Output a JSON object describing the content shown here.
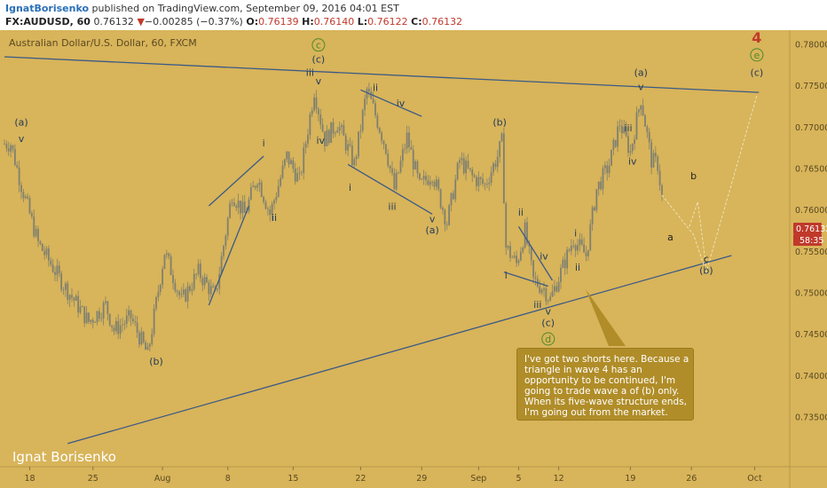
{
  "header": {
    "author": "IgnatBorisenko",
    "published": " published on TradingView.com, September 09, 2016 04:01 EST",
    "symbol": "FX:AUDUSD, 60",
    "last": "0.76132",
    "arrow": "▼",
    "change": "−0.00285 (−0.37%)",
    "open_label": "O:",
    "open": "0.76139",
    "high_label": "H:",
    "high": "0.76140",
    "low_label": "L:",
    "low": "0.76122",
    "close_label": "C:",
    "close": "0.76132"
  },
  "watermark": "Ignat Borisenko",
  "note": "I've got two shorts here. Because a triangle in wave 4 has an opportunity to be continued, I'm going to trade wave a of (b) only. When its five-wave structure ends, I'm going out from the market.",
  "colors": {
    "background": "#d8b45a",
    "trendline": "#3a5a86",
    "candle": "#7f8070",
    "wave_label": "#1f3a5a",
    "wave_green": "#4e8a2a",
    "wave_red": "#c0392b",
    "price_tag": "#c0392b"
  },
  "chart_data": {
    "type": "candlestick",
    "title": "Australian Dollar/U.S. Dollar, 60, FXCM",
    "ylim": [
      0.734,
      0.7815
    ],
    "y_ticks": [
      "0.78000",
      "0.77500",
      "0.77000",
      "0.76500",
      "0.76000",
      "0.75500",
      "0.75000",
      "0.74500",
      "0.74000",
      "0.73500"
    ],
    "x_ticks": [
      "18",
      "25",
      "Aug",
      "8",
      "15",
      "22",
      "29",
      "Sep",
      "5",
      "12",
      "19",
      "26",
      "Oct"
    ],
    "last_price": "0.76132",
    "countdown": "58:35",
    "price_path": [
      [
        0.763,
        0.7675
      ],
      [
        3,
        0.768
      ],
      [
        8,
        0.763
      ],
      [
        16,
        0.756
      ],
      [
        28,
        0.751
      ],
      [
        40,
        0.7465
      ],
      [
        48,
        0.7485
      ],
      [
        52,
        0.7455
      ],
      [
        60,
        0.747
      ],
      [
        68,
        0.7425
      ],
      [
        76,
        0.755
      ],
      [
        84,
        0.749
      ],
      [
        92,
        0.7525
      ],
      [
        100,
        0.7495
      ],
      [
        108,
        0.762
      ],
      [
        114,
        0.7595
      ],
      [
        120,
        0.764
      ],
      [
        126,
        0.7595
      ],
      [
        134,
        0.7665
      ],
      [
        140,
        0.7635
      ],
      [
        147,
        0.7745
      ],
      [
        152,
        0.7685
      ],
      [
        158,
        0.7705
      ],
      [
        166,
        0.7655
      ],
      [
        172,
        0.7745
      ],
      [
        176,
        0.7715
      ],
      [
        181,
        0.7675
      ],
      [
        185,
        0.7625
      ],
      [
        191,
        0.7688
      ],
      [
        197,
        0.7628
      ],
      [
        203,
        0.7645
      ],
      [
        210,
        0.7585
      ],
      [
        216,
        0.766
      ],
      [
        222,
        0.764
      ],
      [
        228,
        0.763
      ],
      [
        234,
        0.7665
      ],
      [
        236,
        0.7682
      ],
      [
        238,
        0.7555
      ],
      [
        243,
        0.7535
      ],
      [
        247,
        0.7575
      ],
      [
        251,
        0.7515
      ],
      [
        256,
        0.7505
      ],
      [
        259,
        0.7492
      ],
      [
        264,
        0.7525
      ],
      [
        270,
        0.7565
      ],
      [
        276,
        0.7545
      ],
      [
        281,
        0.7625
      ],
      [
        287,
        0.7655
      ],
      [
        292,
        0.7705
      ],
      [
        297,
        0.767
      ],
      [
        302,
        0.7735
      ],
      [
        307,
        0.766
      ],
      [
        310,
        0.7655
      ],
      [
        312,
        0.7615
      ]
    ],
    "trendlines": [
      {
        "from": [
          0,
          0.7785
        ],
        "to": [
          358,
          0.7742
        ]
      },
      {
        "from": [
          30,
          0.7318
        ],
        "to": [
          345,
          0.7545
        ]
      },
      {
        "from": [
          97,
          0.7605
        ],
        "to": [
          123,
          0.7665
        ]
      },
      {
        "from": [
          97,
          0.7485
        ],
        "to": [
          116,
          0.7605
        ]
      },
      {
        "from": [
          169,
          0.7745
        ],
        "to": [
          198,
          0.7713
        ]
      },
      {
        "from": [
          163,
          0.7655
        ],
        "to": [
          203,
          0.7595
        ]
      },
      {
        "from": [
          244,
          0.758
        ],
        "to": [
          260,
          0.7515
        ]
      },
      {
        "from": [
          237,
          0.7525
        ],
        "to": [
          258,
          0.7508
        ]
      }
    ],
    "projection": [
      [
        312,
        0.7618
      ],
      [
        327,
        0.757
      ],
      [
        333,
        0.7525
      ],
      [
        357,
        0.7738
      ]
    ],
    "projection_bc": [
      [
        325,
        0.758
      ],
      [
        329,
        0.761
      ],
      [
        333,
        0.753
      ]
    ],
    "waves": [
      {
        "label": "(a)",
        "x": 8,
        "price": 0.7702,
        "color": "#1f3a5a"
      },
      {
        "label": "v",
        "x": 8,
        "price": 0.7682,
        "color": "#1f3a5a"
      },
      {
        "label": "(b)",
        "x": 72,
        "price": 0.7413,
        "color": "#1f3a5a"
      },
      {
        "label": "i",
        "x": 123,
        "price": 0.7677,
        "color": "#1f3a5a"
      },
      {
        "label": "ii",
        "x": 128,
        "price": 0.7587,
        "color": "#1f3a5a"
      },
      {
        "label": "iii",
        "x": 145,
        "price": 0.7762,
        "color": "#1f3a5a"
      },
      {
        "label": "v",
        "x": 149,
        "price": 0.7752,
        "color": "#1f3a5a"
      },
      {
        "label": "iv",
        "x": 150,
        "price": 0.768,
        "color": "#1f3a5a"
      },
      {
        "label": "(c)",
        "x": 149,
        "price": 0.7778,
        "color": "#1f3a5a"
      },
      {
        "label": "c",
        "x": 149,
        "price": 0.7795,
        "color": "#4e8a2a",
        "circle": true
      },
      {
        "label": "i",
        "x": 164,
        "price": 0.7623,
        "color": "#1f3a5a"
      },
      {
        "label": "ii",
        "x": 176,
        "price": 0.7744,
        "color": "#1f3a5a"
      },
      {
        "label": "iii",
        "x": 184,
        "price": 0.76,
        "color": "#1f3a5a"
      },
      {
        "label": "iv",
        "x": 188,
        "price": 0.7725,
        "color": "#1f3a5a"
      },
      {
        "label": "v",
        "x": 203,
        "price": 0.7585,
        "color": "#1f3a5a"
      },
      {
        "label": "(a)",
        "x": 203,
        "price": 0.7572,
        "color": "#1f3a5a"
      },
      {
        "label": "(b)",
        "x": 235,
        "price": 0.7702,
        "color": "#1f3a5a"
      },
      {
        "label": "ii",
        "x": 245,
        "price": 0.7593,
        "color": "#1f3a5a"
      },
      {
        "label": "i",
        "x": 238,
        "price": 0.7517,
        "color": "#1f3a5a"
      },
      {
        "label": "iv",
        "x": 256,
        "price": 0.754,
        "color": "#1f3a5a"
      },
      {
        "label": "iii",
        "x": 253,
        "price": 0.7482,
        "color": "#1f3a5a"
      },
      {
        "label": "v",
        "x": 258,
        "price": 0.7474,
        "color": "#1f3a5a"
      },
      {
        "label": "(c)",
        "x": 258,
        "price": 0.746,
        "color": "#1f3a5a"
      },
      {
        "label": "d",
        "x": 258,
        "price": 0.744,
        "color": "#4e8a2a",
        "circle": true
      },
      {
        "label": "i",
        "x": 271,
        "price": 0.7568,
        "color": "#1f3a5a"
      },
      {
        "label": "ii",
        "x": 272,
        "price": 0.7527,
        "color": "#1f3a5a"
      },
      {
        "label": "iii",
        "x": 296,
        "price": 0.7695,
        "color": "#1f3a5a"
      },
      {
        "label": "iv",
        "x": 298,
        "price": 0.7655,
        "color": "#1f3a5a"
      },
      {
        "label": "(a)",
        "x": 302,
        "price": 0.7762,
        "color": "#1f3a5a"
      },
      {
        "label": "v",
        "x": 302,
        "price": 0.7745,
        "color": "#1f3a5a"
      },
      {
        "label": "a",
        "x": 316,
        "price": 0.7563,
        "color": "#1f1f1f"
      },
      {
        "label": "b",
        "x": 327,
        "price": 0.7637,
        "color": "#1f1f1f"
      },
      {
        "label": "c",
        "x": 333,
        "price": 0.7537,
        "color": "#1f1f1f"
      },
      {
        "label": "(b)",
        "x": 333,
        "price": 0.7523,
        "color": "#1f3a5a"
      },
      {
        "label": "(c)",
        "x": 357,
        "price": 0.7762,
        "color": "#1f3a5a"
      },
      {
        "label": "e",
        "x": 357,
        "price": 0.7783,
        "color": "#4e8a2a",
        "circle": true
      },
      {
        "label": "4",
        "x": 357,
        "price": 0.7802,
        "color": "#c0392b",
        "big": true
      }
    ]
  }
}
